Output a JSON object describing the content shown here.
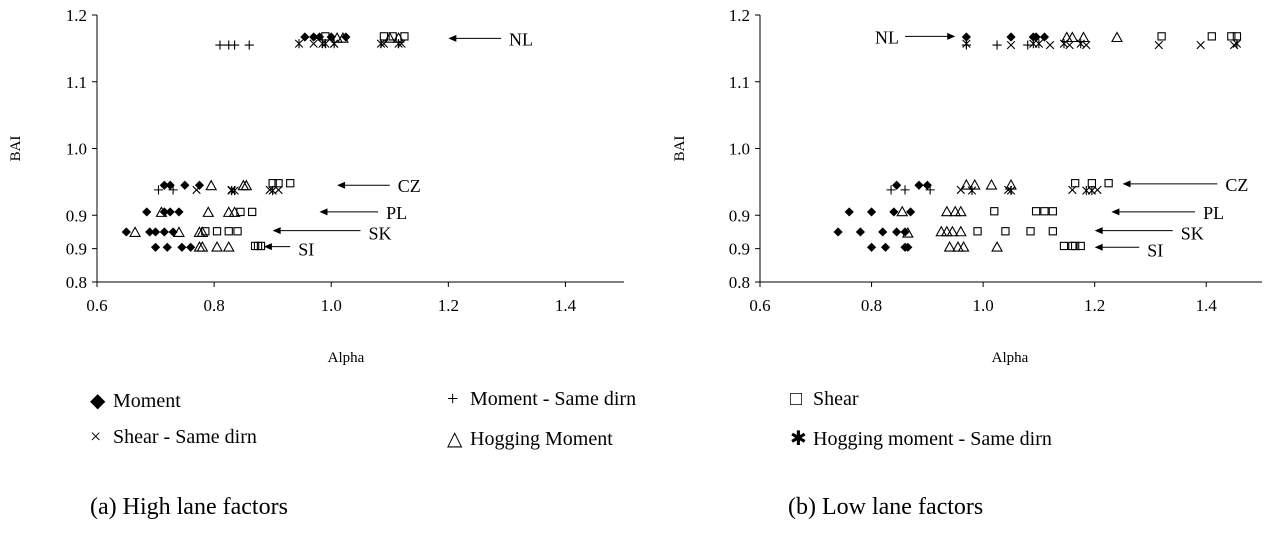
{
  "chart_data": [
    {
      "type": "scatter",
      "caption": "(a) High lane factors",
      "xlabel": "Alpha",
      "ylabel": "BAI",
      "xlim": [
        0.6,
        1.5
      ],
      "ylim": [
        0.8,
        1.2
      ],
      "xticks": [
        "0.6",
        "0.8",
        "1.0",
        "1.2",
        "1.4"
      ],
      "yticks": [
        "0.8",
        "0.9",
        "0.9",
        "1.0",
        "1.1",
        "1.2"
      ],
      "ytick_values": [
        0.8,
        0.85,
        0.9,
        1.0,
        1.1,
        1.2
      ],
      "grid": false,
      "annotations": [
        {
          "label": "NL",
          "y": 1.165,
          "arrow_from": 1.29,
          "arrow_to": 1.2
        },
        {
          "label": "CZ",
          "y": 0.945,
          "arrow_from": 1.1,
          "arrow_to": 1.01
        },
        {
          "label": "PL",
          "y": 0.905,
          "arrow_from": 1.08,
          "arrow_to": 0.98
        },
        {
          "label": "SK",
          "y": 0.877,
          "arrow_from": 1.05,
          "arrow_to": 0.9
        },
        {
          "label": "SI",
          "y": 0.853,
          "arrow_from": 0.93,
          "arrow_to": 0.885
        }
      ],
      "series": [
        {
          "name": "Moment",
          "marker": "diamond",
          "points": [
            [
              0.955,
              1.167
            ],
            [
              0.97,
              1.167
            ],
            [
              0.98,
              1.167
            ],
            [
              1.0,
              1.167
            ],
            [
              1.025,
              1.167
            ],
            [
              0.715,
              0.945
            ],
            [
              0.725,
              0.945
            ],
            [
              0.75,
              0.945
            ],
            [
              0.775,
              0.945
            ],
            [
              0.685,
              0.905
            ],
            [
              0.715,
              0.905
            ],
            [
              0.725,
              0.905
            ],
            [
              0.74,
              0.905
            ],
            [
              0.65,
              0.875
            ],
            [
              0.69,
              0.875
            ],
            [
              0.7,
              0.875
            ],
            [
              0.715,
              0.875
            ],
            [
              0.73,
              0.875
            ],
            [
              0.7,
              0.852
            ],
            [
              0.72,
              0.852
            ],
            [
              0.745,
              0.852
            ],
            [
              0.76,
              0.852
            ]
          ]
        },
        {
          "name": "Moment - Same dirn",
          "marker": "plus",
          "points": [
            [
              0.81,
              1.155
            ],
            [
              0.825,
              1.155
            ],
            [
              0.835,
              1.155
            ],
            [
              0.86,
              1.155
            ],
            [
              0.705,
              0.938
            ],
            [
              0.73,
              0.938
            ]
          ]
        },
        {
          "name": "Shear",
          "marker": "square",
          "points": [
            [
              0.99,
              1.168
            ],
            [
              1.09,
              1.168
            ],
            [
              1.105,
              1.168
            ],
            [
              1.125,
              1.168
            ],
            [
              0.9,
              0.948
            ],
            [
              0.91,
              0.948
            ],
            [
              0.93,
              0.948
            ],
            [
              0.845,
              0.905
            ],
            [
              0.865,
              0.905
            ],
            [
              0.785,
              0.876
            ],
            [
              0.805,
              0.876
            ],
            [
              0.825,
              0.876
            ],
            [
              0.84,
              0.876
            ],
            [
              0.87,
              0.854
            ],
            [
              0.875,
              0.854
            ],
            [
              0.88,
              0.854
            ]
          ]
        },
        {
          "name": "Shear - Same dirn",
          "marker": "x",
          "points": [
            [
              0.97,
              1.157
            ],
            [
              1.005,
              1.157
            ],
            [
              1.09,
              1.157
            ],
            [
              1.12,
              1.157
            ],
            [
              0.77,
              0.938
            ],
            [
              0.83,
              0.938
            ],
            [
              0.895,
              0.938
            ],
            [
              0.91,
              0.938
            ]
          ]
        },
        {
          "name": "Hogging Moment",
          "marker": "triangle",
          "points": [
            [
              1.01,
              1.165
            ],
            [
              1.02,
              1.165
            ],
            [
              1.1,
              1.165
            ],
            [
              1.115,
              1.165
            ],
            [
              0.795,
              0.944
            ],
            [
              0.85,
              0.944
            ],
            [
              0.855,
              0.944
            ],
            [
              0.71,
              0.904
            ],
            [
              0.79,
              0.904
            ],
            [
              0.825,
              0.904
            ],
            [
              0.835,
              0.904
            ],
            [
              0.665,
              0.874
            ],
            [
              0.74,
              0.874
            ],
            [
              0.775,
              0.874
            ],
            [
              0.78,
              0.874
            ],
            [
              0.775,
              0.852
            ],
            [
              0.78,
              0.852
            ],
            [
              0.805,
              0.852
            ],
            [
              0.825,
              0.852
            ]
          ]
        },
        {
          "name": "Hogging moment - Same dirn",
          "marker": "asterisk",
          "points": [
            [
              0.945,
              1.157
            ],
            [
              0.985,
              1.157
            ],
            [
              0.99,
              1.157
            ],
            [
              1.005,
              1.157
            ],
            [
              1.085,
              1.157
            ],
            [
              1.115,
              1.157
            ],
            [
              0.83,
              0.937
            ],
            [
              0.835,
              0.937
            ],
            [
              0.9,
              0.937
            ]
          ]
        }
      ]
    },
    {
      "type": "scatter",
      "caption": "(b) Low lane factors",
      "xlabel": "Alpha",
      "ylabel": "BAI",
      "xlim": [
        0.6,
        1.5
      ],
      "ylim": [
        0.8,
        1.2
      ],
      "xticks": [
        "0.6",
        "0.8",
        "1.0",
        "1.2",
        "1.4"
      ],
      "yticks": [
        "0.8",
        "0.9",
        "0.9",
        "1.0",
        "1.1",
        "1.2"
      ],
      "ytick_values": [
        0.8,
        0.85,
        0.9,
        1.0,
        1.1,
        1.2
      ],
      "grid": false,
      "annotations": [
        {
          "label": "NL",
          "y": 1.168,
          "arrow_from": 0.86,
          "arrow_to": 0.95,
          "side": "left"
        },
        {
          "label": "CZ",
          "y": 0.947,
          "arrow_from": 1.42,
          "arrow_to": 1.25
        },
        {
          "label": "PL",
          "y": 0.905,
          "arrow_from": 1.38,
          "arrow_to": 1.23
        },
        {
          "label": "SK",
          "y": 0.877,
          "arrow_from": 1.34,
          "arrow_to": 1.2
        },
        {
          "label": "SI",
          "y": 0.852,
          "arrow_from": 1.28,
          "arrow_to": 1.2
        }
      ],
      "series": [
        {
          "name": "Moment",
          "marker": "diamond",
          "points": [
            [
              0.97,
              1.167
            ],
            [
              1.05,
              1.167
            ],
            [
              1.09,
              1.167
            ],
            [
              1.095,
              1.167
            ],
            [
              1.11,
              1.167
            ],
            [
              0.845,
              0.945
            ],
            [
              0.885,
              0.945
            ],
            [
              0.9,
              0.945
            ],
            [
              0.76,
              0.905
            ],
            [
              0.8,
              0.905
            ],
            [
              0.84,
              0.905
            ],
            [
              0.87,
              0.905
            ],
            [
              0.74,
              0.875
            ],
            [
              0.78,
              0.875
            ],
            [
              0.82,
              0.875
            ],
            [
              0.845,
              0.875
            ],
            [
              0.86,
              0.875
            ],
            [
              0.8,
              0.852
            ],
            [
              0.825,
              0.852
            ],
            [
              0.86,
              0.852
            ],
            [
              0.865,
              0.852
            ]
          ]
        },
        {
          "name": "Moment - Same dirn",
          "marker": "plus",
          "points": [
            [
              0.97,
              1.155
            ],
            [
              1.025,
              1.155
            ],
            [
              1.08,
              1.155
            ],
            [
              0.835,
              0.938
            ],
            [
              0.86,
              0.938
            ],
            [
              0.905,
              0.938
            ]
          ]
        },
        {
          "name": "Shear",
          "marker": "square",
          "points": [
            [
              1.32,
              1.168
            ],
            [
              1.41,
              1.168
            ],
            [
              1.445,
              1.168
            ],
            [
              1.455,
              1.168
            ],
            [
              1.165,
              0.948
            ],
            [
              1.195,
              0.948
            ],
            [
              1.225,
              0.948
            ],
            [
              1.02,
              0.906
            ],
            [
              1.095,
              0.906
            ],
            [
              1.11,
              0.906
            ],
            [
              1.125,
              0.906
            ],
            [
              0.99,
              0.876
            ],
            [
              1.04,
              0.876
            ],
            [
              1.085,
              0.876
            ],
            [
              1.125,
              0.876
            ],
            [
              1.145,
              0.854
            ],
            [
              1.16,
              0.854
            ],
            [
              1.165,
              0.854
            ],
            [
              1.175,
              0.854
            ]
          ]
        },
        {
          "name": "Shear - Same dirn",
          "marker": "x",
          "points": [
            [
              1.05,
              1.155
            ],
            [
              1.12,
              1.155
            ],
            [
              1.155,
              1.155
            ],
            [
              1.185,
              1.155
            ],
            [
              1.315,
              1.155
            ],
            [
              1.39,
              1.155
            ],
            [
              1.45,
              1.155
            ],
            [
              0.96,
              0.938
            ],
            [
              1.045,
              0.938
            ],
            [
              1.16,
              0.938
            ],
            [
              1.205,
              0.938
            ]
          ]
        },
        {
          "name": "Hogging Moment",
          "marker": "triangle",
          "points": [
            [
              1.15,
              1.166
            ],
            [
              1.16,
              1.166
            ],
            [
              1.18,
              1.166
            ],
            [
              1.24,
              1.166
            ],
            [
              0.97,
              0.945
            ],
            [
              0.985,
              0.945
            ],
            [
              1.015,
              0.945
            ],
            [
              1.05,
              0.945
            ],
            [
              0.855,
              0.905
            ],
            [
              0.935,
              0.905
            ],
            [
              0.95,
              0.905
            ],
            [
              0.96,
              0.905
            ],
            [
              0.925,
              0.875
            ],
            [
              0.935,
              0.875
            ],
            [
              0.945,
              0.875
            ],
            [
              0.96,
              0.875
            ],
            [
              0.865,
              0.873
            ],
            [
              0.94,
              0.852
            ],
            [
              0.955,
              0.852
            ],
            [
              0.965,
              0.852
            ],
            [
              1.025,
              0.852
            ]
          ]
        },
        {
          "name": "Hogging moment - Same dirn",
          "marker": "asterisk",
          "points": [
            [
              0.97,
              1.157
            ],
            [
              1.09,
              1.157
            ],
            [
              1.1,
              1.157
            ],
            [
              1.145,
              1.157
            ],
            [
              1.175,
              1.157
            ],
            [
              1.455,
              1.157
            ],
            [
              0.98,
              0.937
            ],
            [
              1.05,
              0.937
            ],
            [
              1.185,
              0.937
            ],
            [
              1.195,
              0.937
            ]
          ]
        }
      ]
    }
  ],
  "legend": [
    {
      "label": "Moment",
      "icon": "diamond-icon",
      "symbol": "◆"
    },
    {
      "label": "Moment - Same dirn",
      "icon": "plus-icon",
      "symbol": "+"
    },
    {
      "label": "Shear",
      "icon": "square-icon",
      "symbol": "□"
    },
    {
      "label": "Shear - Same dirn",
      "icon": "x-icon",
      "symbol": "×"
    },
    {
      "label": "Hogging Moment",
      "icon": "triangle-icon",
      "symbol": "△"
    },
    {
      "label": "Hogging moment - Same dirn",
      "icon": "asterisk-icon",
      "symbol": "✱"
    }
  ],
  "captions": {
    "a": "(a) High lane factors",
    "b": "(b) Low lane factors"
  }
}
